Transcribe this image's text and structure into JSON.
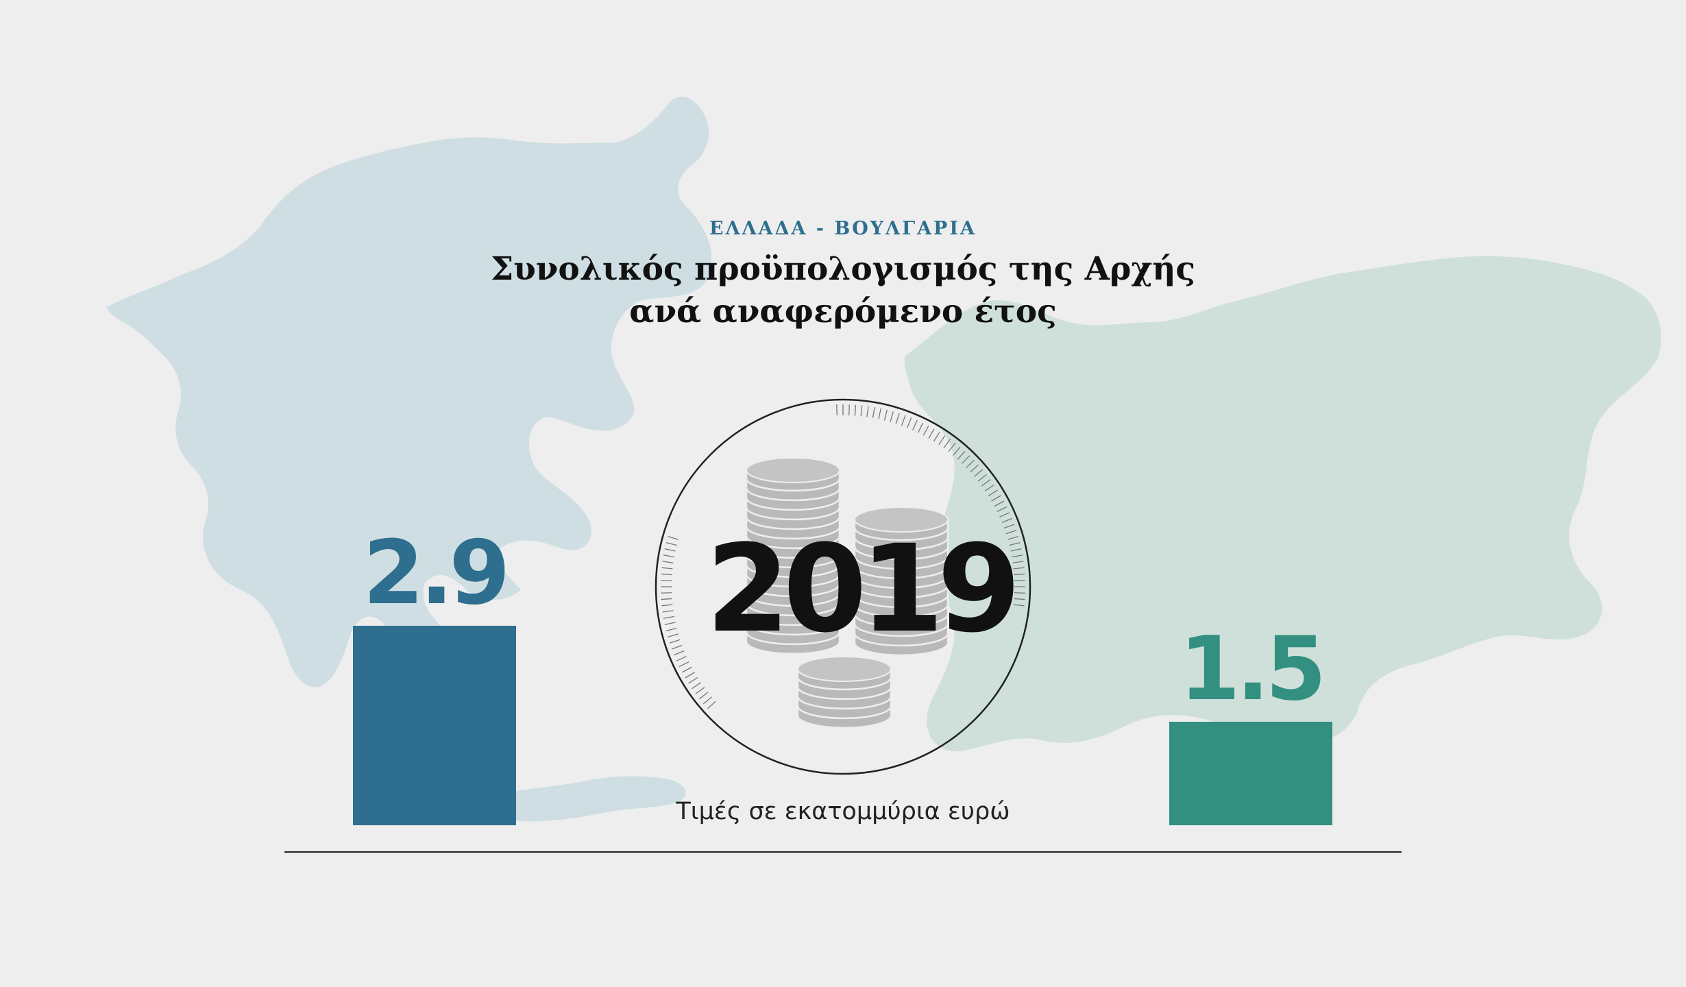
{
  "header": {
    "kicker": "ΕΛΛΑΔΑ - ΒΟΥΛΓΑΡΙΑ",
    "title_line1": "Συνολικός προϋπολογισμός της Αρχής",
    "title_line2": "ανά αναφερόμενο έτος"
  },
  "center": {
    "year": "2019",
    "icon": "coin-stacks-icon"
  },
  "footer": {
    "unit_note": "Τιμές σε εκατομμύρια ευρώ"
  },
  "colors": {
    "greece": "#2e6e8e",
    "bulgaria": "#338f80",
    "map_greece": "#cfdee2",
    "map_bulgaria": "#cfe0da",
    "background": "#eeeeee"
  },
  "chart_data": {
    "type": "bar",
    "categories": [
      "",
      ""
    ],
    "values": [
      2.9,
      1.5
    ],
    "value_labels": [
      "2.9",
      "1.5"
    ],
    "ylim": [
      0,
      2.9
    ],
    "title": "Συνολικός προϋπολογισμός της Αρχής ανά αναφερόμενο έτος",
    "subtitle": "ΕΛΛΑΔΑ - ΒΟΥΛΓΑΡΙΑ",
    "xlabel": "",
    "ylabel": "",
    "grid": false,
    "legend": "none"
  }
}
